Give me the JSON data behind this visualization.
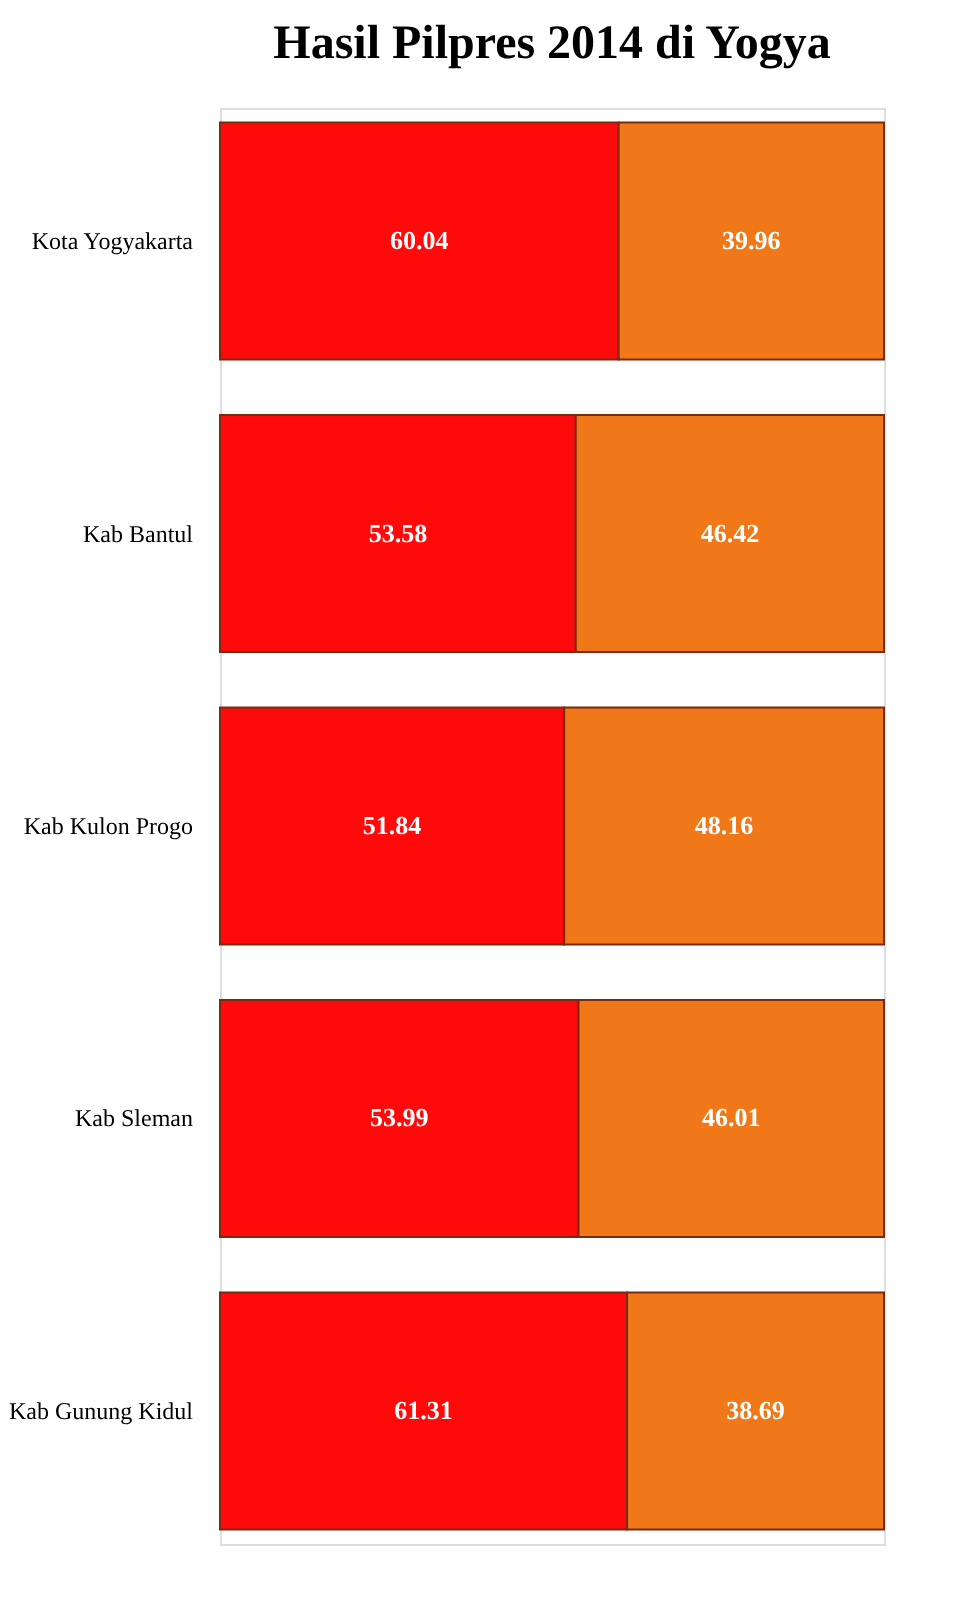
{
  "chart_data": {
    "type": "bar",
    "title": "Hasil Pilpres 2014 di Yogya",
    "orientation": "horizontal",
    "stacked": true,
    "data_labels": true,
    "grid": false,
    "categories": [
      "Kota Yogyakarta",
      "Kab Bantul",
      "Kab Kulon Progo",
      "Kab Sleman",
      "Kab Gunung Kidul"
    ],
    "series": [
      {
        "color": "#fe0a0a",
        "values": [
          60.04,
          53.58,
          51.84,
          53.99,
          61.31
        ]
      },
      {
        "color": "#f07818",
        "values": [
          39.96,
          46.42,
          48.16,
          46.01,
          38.69
        ]
      }
    ]
  }
}
